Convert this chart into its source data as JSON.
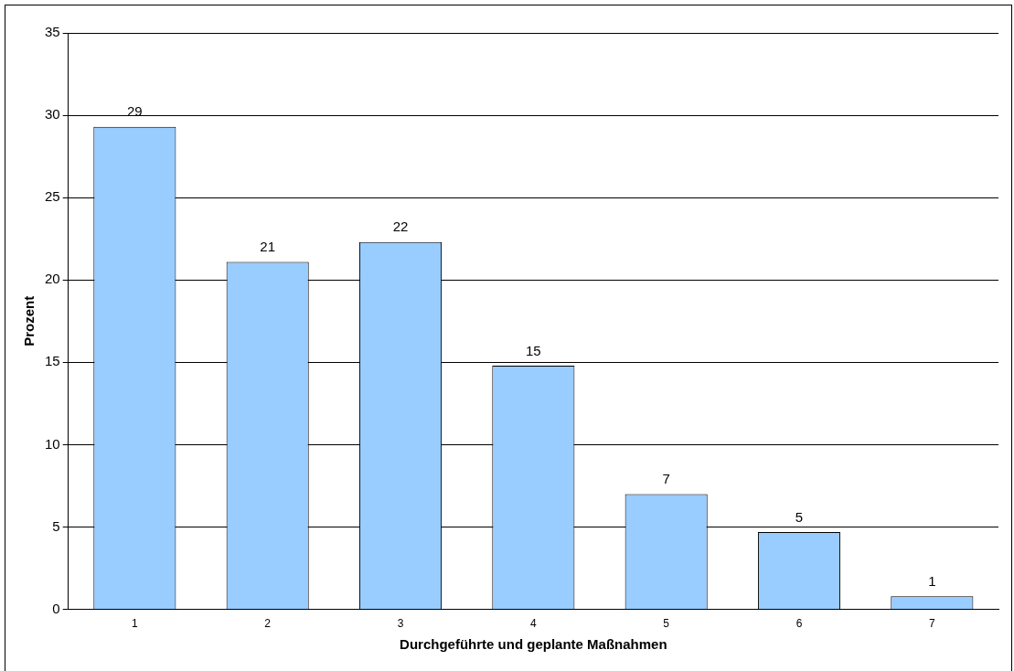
{
  "chart_data": {
    "type": "bar",
    "xlabel": "Durchgeführte und geplante Maßnahmen",
    "ylabel": "Prozent",
    "categories": [
      "1",
      "2",
      "3",
      "4",
      "5",
      "6",
      "7"
    ],
    "values": [
      29.3,
      21.1,
      22.3,
      14.8,
      7.0,
      4.7,
      0.8
    ],
    "value_labels": [
      "29",
      "21",
      "22",
      "15",
      "7",
      "5",
      "1"
    ],
    "color": "#99ccff",
    "ylim": [
      0,
      35
    ],
    "yticks": [
      0,
      5,
      10,
      15,
      20,
      25,
      30,
      35
    ],
    "grid": "y",
    "legend": false
  }
}
